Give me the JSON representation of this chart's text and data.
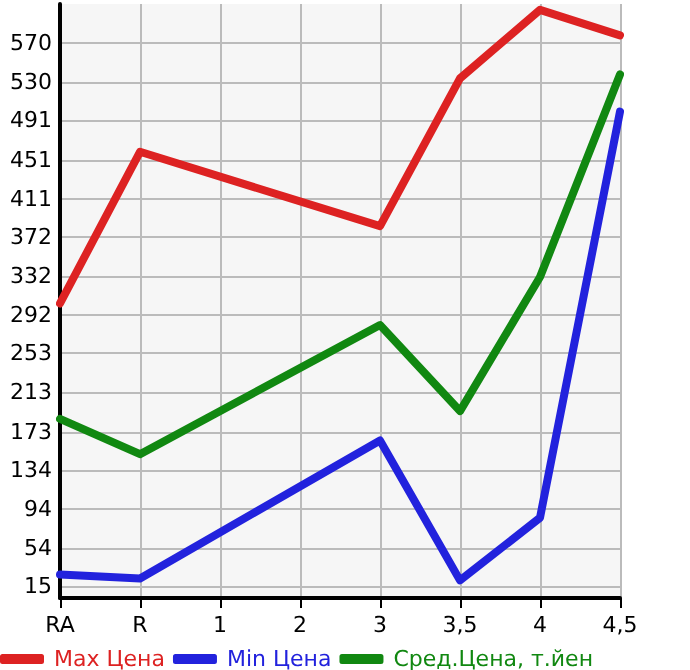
{
  "chart_data": {
    "type": "line",
    "categories": [
      "RA",
      "R",
      "1",
      "2",
      "3",
      "3,5",
      "4",
      "4,5"
    ],
    "series": [
      {
        "name": "Max Цена",
        "color": "#dd2222",
        "values": [
          304,
          459,
          null,
          null,
          383,
          534,
          604,
          578
        ]
      },
      {
        "name": "Min Цена",
        "color": "#2222dd",
        "values": [
          27,
          23,
          null,
          null,
          164,
          21,
          85,
          500
        ]
      },
      {
        "name": "Сред.Цена, т.йен",
        "color": "#118811",
        "values": [
          186,
          150,
          null,
          null,
          282,
          194,
          331,
          538
        ]
      }
    ],
    "ylim": [
      3,
      610
    ],
    "yticks": [
      15,
      54,
      94,
      134,
      173,
      213,
      253,
      292,
      332,
      372,
      411,
      451,
      491,
      530,
      570
    ],
    "grid": true,
    "legend": "bottom",
    "marker": "none",
    "line_style": "solid"
  }
}
